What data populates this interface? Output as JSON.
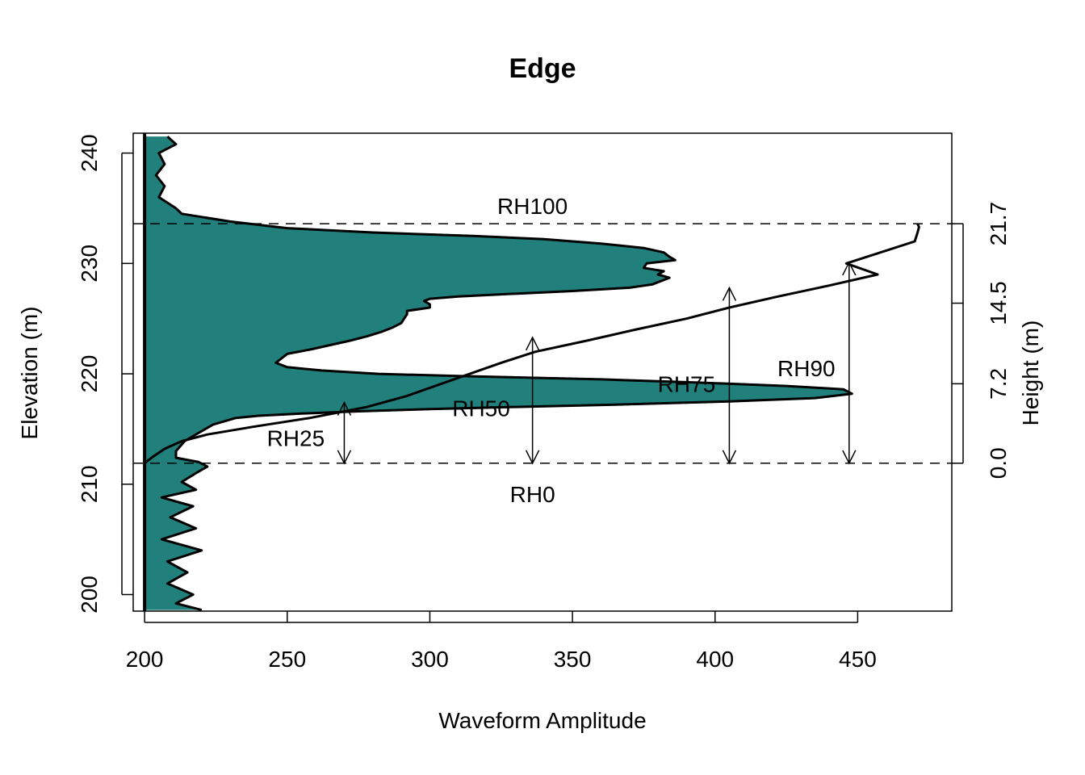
{
  "chart_data": {
    "type": "area",
    "title": "Edge",
    "xlabel": "Waveform Amplitude",
    "ylabel": "Elevation (m)",
    "y2label": "Height (m)",
    "xlim": [
      196,
      483
    ],
    "ylim": [
      198.5,
      241.8
    ],
    "x_ticks": [
      "200",
      "250",
      "300",
      "350",
      "400",
      "450"
    ],
    "y_ticks": [
      "200",
      "210",
      "220",
      "230",
      "240"
    ],
    "y2_ticks": [
      "0.0",
      "7.2",
      "14.5",
      "21.7"
    ],
    "grid": false,
    "ground_elevation": 211.9,
    "top_elevation": 233.6,
    "fill_color": "#21807c",
    "waveform": {
      "y": [
        241.5,
        240.8,
        240,
        239,
        238,
        237,
        236,
        235,
        234.5,
        233.8,
        233.2,
        232.8,
        232.5,
        232.2,
        231.8,
        231.4,
        231,
        230.6,
        230.3,
        230,
        229.6,
        229.3,
        229,
        228.7,
        228.4,
        228.1,
        227.8,
        227.5,
        227.2,
        227,
        226.8,
        226.6,
        226.3,
        226,
        225.7,
        225.4,
        225,
        224.6,
        224.2,
        223.8,
        223.4,
        223,
        222.6,
        222.2,
        221.8,
        221.4,
        221,
        220.6,
        220.3,
        220,
        219.8,
        219.5,
        219.2,
        218.9,
        218.6,
        218.2,
        217.8,
        217.5,
        217.2,
        217,
        216.8,
        216.6,
        216.4,
        216.2,
        216,
        215.7,
        215.4,
        215.1,
        214.8,
        214.5,
        214.2,
        213.9,
        213.6,
        213.3,
        213,
        212.7,
        212.4,
        212,
        211.6,
        211,
        210.2,
        209.5,
        208.8,
        208,
        207,
        206,
        205,
        204,
        203,
        202,
        201,
        200,
        199.2,
        198.6
      ],
      "x": [
        208,
        211,
        205,
        207,
        204,
        207,
        205,
        211,
        213,
        230,
        250,
        280,
        315,
        340,
        360,
        375,
        382,
        384,
        386,
        376,
        375,
        382,
        380,
        384,
        381,
        378,
        370,
        350,
        325,
        310,
        300,
        298,
        300,
        300,
        292,
        292,
        291,
        290,
        287,
        283,
        278,
        272,
        265,
        258,
        250,
        248,
        246,
        250,
        262,
        282,
        310,
        360,
        395,
        425,
        445,
        448,
        435,
        405,
        365,
        330,
        300,
        275,
        255,
        240,
        232,
        228,
        224,
        222,
        220,
        218,
        216,
        214,
        213,
        212,
        211,
        211,
        211,
        219,
        222,
        218,
        213,
        218,
        206,
        217,
        209,
        218,
        206,
        220,
        208,
        215,
        208,
        217,
        211,
        220
      ],
      "__fix": "values estimated from plot"
    },
    "cumulative_curve": {
      "y": [
        211.9,
        212.5,
        213.2,
        213.9,
        214.5,
        215.2,
        216,
        217,
        218,
        219,
        220,
        221,
        222,
        223,
        224,
        225,
        226,
        227,
        228,
        229,
        230,
        231,
        232,
        232.8,
        233.3,
        233.6
      ],
      "x": [
        200,
        203,
        207,
        213,
        222,
        238,
        258,
        278,
        292,
        303,
        314,
        325,
        337,
        355,
        372,
        390,
        405,
        422,
        440,
        457,
        446,
        458,
        470,
        471,
        471.5,
        471
      ]
    },
    "rh_markers": [
      {
        "label": "RH0",
        "x": 270,
        "elev": 211.9
      },
      {
        "label": "RH25",
        "x": 270,
        "elev": 217.4
      },
      {
        "label": "RH50",
        "x": 336,
        "elev": 223.3
      },
      {
        "label": "RH75",
        "x": 405,
        "elev": 227.8
      },
      {
        "label": "RH90",
        "x": 447,
        "elev": 230.1
      },
      {
        "label": "RH100",
        "x": 336,
        "elev": 233.6
      }
    ],
    "annotations": [
      {
        "text": "RH100",
        "x": 336,
        "elev": 235.2
      },
      {
        "text": "RH0",
        "x": 336,
        "elev": 209.1
      },
      {
        "text": "RH25",
        "x": 253,
        "elev": 214.2
      },
      {
        "text": "RH50",
        "x": 318,
        "elev": 216.9
      },
      {
        "text": "RH75",
        "x": 390,
        "elev": 219.1
      },
      {
        "text": "RH90",
        "x": 432,
        "elev": 220.5
      }
    ]
  }
}
